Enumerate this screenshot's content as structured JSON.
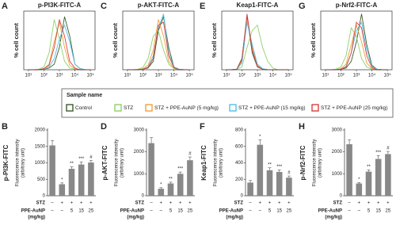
{
  "legend": {
    "title": "Sample name"
  },
  "chart_data": [
    {
      "type": "line",
      "label": "A",
      "title": "p-PI3K-FITC-A",
      "ylabel": "% cell count",
      "xscale": "log",
      "x": [
        10,
        21.5,
        46.4,
        100,
        215,
        464,
        1000,
        2154,
        4642,
        10000,
        21544,
        46416,
        100000
      ],
      "xlim": [
        5,
        200000
      ],
      "ylim": [
        0,
        105
      ],
      "xticks": [
        {
          "value": 10,
          "label": "10¹"
        },
        {
          "value": 100,
          "label": "10²"
        },
        {
          "value": 1000,
          "label": "10³"
        },
        {
          "value": 10000,
          "label": "10⁴"
        },
        {
          "value": 100000,
          "label": "10⁵"
        }
      ],
      "series": [
        {
          "name": "Control",
          "color": "#3d5a2a",
          "values": [
            0,
            0,
            0,
            1,
            3,
            10,
            40,
            95,
            60,
            10,
            2,
            0,
            0
          ]
        },
        {
          "name": "STZ",
          "color": "#8fd16a",
          "values": [
            0,
            0,
            1,
            5,
            30,
            90,
            55,
            15,
            3,
            1,
            0,
            0,
            0
          ]
        },
        {
          "name": "STZ + PPE-AuNP (5 mg/kg)",
          "color": "#f0a040",
          "values": [
            0,
            0,
            0,
            2,
            10,
            50,
            85,
            40,
            8,
            2,
            0,
            0,
            0
          ]
        },
        {
          "name": "STZ + PPE-AuNP (15 mg/kg)",
          "color": "#4fc3e8",
          "values": [
            0,
            0,
            0,
            1,
            5,
            20,
            55,
            80,
            50,
            10,
            2,
            0,
            0
          ]
        },
        {
          "name": "STZ + PPE-AuNP (25 mg/kg)",
          "color": "#d94040",
          "values": [
            0,
            0,
            0,
            2,
            8,
            40,
            90,
            60,
            15,
            3,
            0,
            0,
            0
          ]
        }
      ]
    },
    {
      "type": "line",
      "label": "C",
      "title": "p-AKT-FITC-A",
      "ylabel": "% cell count",
      "xscale": "log",
      "x": [
        10,
        21.5,
        46.4,
        100,
        215,
        464,
        1000,
        2154,
        4642,
        10000,
        21544,
        46416,
        100000
      ],
      "xlim": [
        5,
        200000
      ],
      "ylim": [
        0,
        105
      ],
      "xticks": [
        {
          "value": 10,
          "label": "10¹"
        },
        {
          "value": 100,
          "label": "10²"
        },
        {
          "value": 1000,
          "label": "10³"
        },
        {
          "value": 10000,
          "label": "10⁴"
        },
        {
          "value": 100000,
          "label": "10⁵"
        }
      ],
      "series": [
        {
          "name": "Control",
          "color": "#3d5a2a",
          "values": [
            0,
            0,
            0,
            1,
            3,
            15,
            70,
            95,
            40,
            5,
            1,
            0,
            0
          ]
        },
        {
          "name": "STZ",
          "color": "#8fd16a",
          "values": [
            0,
            0,
            1,
            4,
            20,
            60,
            70,
            35,
            10,
            2,
            0,
            0,
            0
          ]
        },
        {
          "name": "STZ + PPE-AuNP (5 mg/kg)",
          "color": "#f0a040",
          "values": [
            0,
            0,
            0,
            2,
            8,
            35,
            90,
            60,
            15,
            3,
            0,
            0,
            0
          ]
        },
        {
          "name": "STZ + PPE-AuNP (15 mg/kg)",
          "color": "#4fc3e8",
          "values": [
            0,
            0,
            0,
            1,
            5,
            25,
            75,
            100,
            30,
            5,
            1,
            0,
            0
          ]
        },
        {
          "name": "STZ + PPE-AuNP (25 mg/kg)",
          "color": "#d94040",
          "values": [
            0,
            0,
            0,
            1,
            4,
            20,
            80,
            85,
            25,
            4,
            0,
            0,
            0
          ]
        }
      ]
    },
    {
      "type": "line",
      "label": "E",
      "title": "Keap1-FITC-A",
      "ylabel": "% cell count",
      "xscale": "log",
      "x": [
        10,
        21.5,
        46.4,
        100,
        215,
        464,
        1000,
        2154,
        4642,
        10000,
        21544,
        46416,
        100000
      ],
      "xlim": [
        5,
        200000
      ],
      "ylim": [
        0,
        105
      ],
      "xticks": [
        {
          "value": 10,
          "label": "10¹"
        },
        {
          "value": 100,
          "label": "10²"
        },
        {
          "value": 1000,
          "label": "10³"
        },
        {
          "value": 10000,
          "label": "10⁴"
        },
        {
          "value": 100000,
          "label": "10⁵"
        }
      ],
      "series": [
        {
          "name": "Control",
          "color": "#3d5a2a",
          "values": [
            0,
            0,
            1,
            20,
            95,
            30,
            5,
            1,
            0,
            0,
            0,
            0,
            0
          ]
        },
        {
          "name": "STZ",
          "color": "#8fd16a",
          "values": [
            0,
            0,
            1,
            5,
            40,
            70,
            80,
            40,
            15,
            3,
            0,
            0,
            0
          ]
        },
        {
          "name": "STZ + PPE-AuNP (5 mg/kg)",
          "color": "#f0a040",
          "values": [
            0,
            0,
            1,
            15,
            90,
            40,
            8,
            1,
            0,
            0,
            0,
            0,
            0
          ]
        },
        {
          "name": "STZ + PPE-AuNP (15 mg/kg)",
          "color": "#4fc3e8",
          "values": [
            0,
            0,
            1,
            12,
            85,
            45,
            10,
            2,
            0,
            0,
            0,
            0,
            0
          ]
        },
        {
          "name": "STZ + PPE-AuNP (25 mg/kg)",
          "color": "#d94040",
          "values": [
            0,
            0,
            1,
            18,
            100,
            35,
            6,
            1,
            0,
            0,
            0,
            0,
            0
          ]
        }
      ]
    },
    {
      "type": "line",
      "label": "G",
      "title": "p-Nrf2-FITC-A",
      "ylabel": "% cell count",
      "xscale": "log",
      "x": [
        10,
        21.5,
        46.4,
        100,
        215,
        464,
        1000,
        2154,
        4642,
        10000,
        21544,
        46416,
        100000
      ],
      "xlim": [
        5,
        200000
      ],
      "ylim": [
        0,
        105
      ],
      "xticks": [
        {
          "value": 10,
          "label": "10¹"
        },
        {
          "value": 100,
          "label": "10²"
        },
        {
          "value": 1000,
          "label": "10³"
        },
        {
          "value": 10000,
          "label": "10⁴"
        },
        {
          "value": 100000,
          "label": "10⁵"
        }
      ],
      "series": [
        {
          "name": "Control",
          "color": "#3d5a2a",
          "values": [
            0,
            0,
            0,
            1,
            3,
            15,
            50,
            100,
            45,
            8,
            1,
            0,
            0
          ]
        },
        {
          "name": "STZ",
          "color": "#8fd16a",
          "values": [
            0,
            0,
            1,
            5,
            25,
            75,
            60,
            20,
            5,
            1,
            0,
            0,
            0
          ]
        },
        {
          "name": "STZ + PPE-AuNP (5 mg/kg)",
          "color": "#f0a040",
          "values": [
            0,
            0,
            0,
            2,
            10,
            45,
            80,
            50,
            12,
            2,
            0,
            0,
            0
          ]
        },
        {
          "name": "STZ + PPE-AuNP (15 mg/kg)",
          "color": "#4fc3e8",
          "values": [
            0,
            0,
            0,
            1,
            6,
            30,
            70,
            85,
            35,
            6,
            1,
            0,
            0
          ]
        },
        {
          "name": "STZ + PPE-AuNP (25 mg/kg)",
          "color": "#d94040",
          "values": [
            0,
            0,
            0,
            1,
            5,
            30,
            85,
            75,
            25,
            4,
            0,
            0,
            0
          ]
        }
      ]
    },
    {
      "type": "bar",
      "label": "B",
      "side_label": "p-PI3K-FITC",
      "ylabel": [
        "Fluorescence intensity",
        "(arbitrary unit)"
      ],
      "color": "#888888",
      "values": [
        1530,
        350,
        820,
        950,
        1010
      ],
      "errors": [
        150,
        40,
        60,
        80,
        60
      ],
      "annotations": [
        null,
        "*",
        "**",
        "***",
        "#"
      ],
      "ylim": [
        0,
        2000
      ],
      "yticks": [
        0,
        500,
        1000,
        1500,
        2000
      ],
      "rows": [
        {
          "label": [
            "STZ"
          ],
          "values": [
            "–",
            "+",
            "+",
            "+",
            "+"
          ]
        },
        {
          "label": [
            "PPE-AuNP",
            "(mg/kg)"
          ],
          "values": [
            "–",
            "–",
            "5",
            "15",
            "25"
          ]
        }
      ]
    },
    {
      "type": "bar",
      "label": "D",
      "side_label": "p-AKT-FITC",
      "ylabel": [
        "Fluorescence intensity",
        "(arbitrary unit)"
      ],
      "color": "#888888",
      "values": [
        2400,
        320,
        560,
        1000,
        1620
      ],
      "errors": [
        250,
        50,
        60,
        80,
        150
      ],
      "annotations": [
        null,
        "*",
        "**",
        "***",
        "#"
      ],
      "ylim": [
        0,
        3000
      ],
      "yticks": [
        0,
        1000,
        2000,
        3000
      ],
      "rows": [
        {
          "label": [
            "STZ"
          ],
          "values": [
            "–",
            "+",
            "+",
            "+",
            "+"
          ]
        },
        {
          "label": [
            "PPE-AuNP",
            "(mg/kg)"
          ],
          "values": [
            "–",
            "–",
            "5",
            "15",
            "25"
          ]
        }
      ]
    },
    {
      "type": "bar",
      "label": "F",
      "side_label": "Keap1-FITC",
      "ylabel": [
        "Fluorescence intensity",
        "(arbitrary unit)"
      ],
      "color": "#888888",
      "values": [
        160,
        620,
        310,
        290,
        220
      ],
      "errors": [
        25,
        60,
        30,
        25,
        20
      ],
      "annotations": [
        null,
        "*",
        "**",
        "***",
        "#"
      ],
      "ylim": [
        0,
        800
      ],
      "yticks": [
        0,
        200,
        400,
        600,
        800
      ],
      "rows": [
        {
          "label": [
            "STZ"
          ],
          "values": [
            "–",
            "+",
            "+",
            "+",
            "+"
          ]
        },
        {
          "label": [
            "PPE-AuNP",
            "(mg/kg)"
          ],
          "values": [
            "–",
            "–",
            "5",
            "15",
            "25"
          ]
        }
      ]
    },
    {
      "type": "bar",
      "label": "H",
      "side_label": "p-Nrf2-FITC",
      "ylabel": [
        "Fluorescence intensity",
        "(arbitrary unit)"
      ],
      "color": "#888888",
      "values": [
        2350,
        560,
        1100,
        1680,
        1900
      ],
      "errors": [
        200,
        40,
        80,
        150,
        120
      ],
      "annotations": [
        null,
        "*",
        "**",
        "***",
        "#"
      ],
      "ylim": [
        0,
        3000
      ],
      "yticks": [
        0,
        1000,
        2000,
        3000
      ],
      "rows": [
        {
          "label": [
            "STZ"
          ],
          "values": [
            "–",
            "+",
            "+",
            "+",
            "+"
          ]
        },
        {
          "label": [
            "PPE-AuNP",
            "(mg/kg)"
          ],
          "values": [
            "–",
            "–",
            "5",
            "15",
            "25"
          ]
        }
      ]
    }
  ]
}
